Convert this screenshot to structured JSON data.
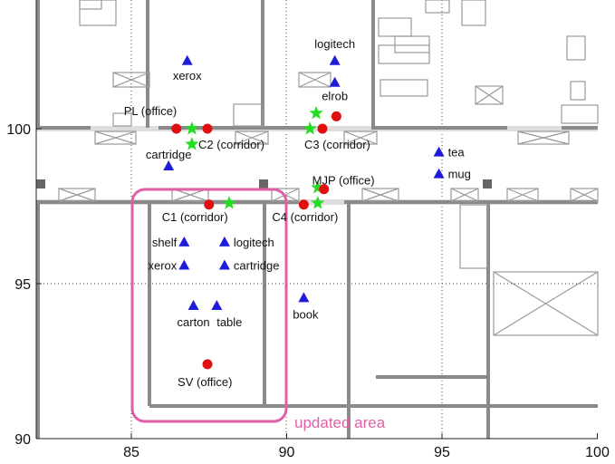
{
  "x_ticks": [
    "85",
    "90",
    "95",
    "100"
  ],
  "y_ticks": [
    "90",
    "95",
    "100"
  ],
  "colors": {
    "wall": "#8a8a8a",
    "furniture": "#9a9a9a",
    "object": "#1e1ed8",
    "place": "#e01010",
    "door": "#22dd22",
    "highlight": "#e060a8",
    "corridor_line": "#d6d6d6"
  },
  "legend_marker_meaning": {
    "object": "blue-triangle-icon",
    "place": "red-circle-icon",
    "door": "green-star-icon"
  },
  "highlight_label": "updated area",
  "places": [
    {
      "label": "PL (office)",
      "x": 86.45,
      "y": 100.0
    },
    {
      "label": "C2 (corridor)",
      "x": 87.45,
      "y": 100.0
    },
    {
      "label": "C3 (corridor)",
      "x": 91.15,
      "y": 100.0
    },
    {
      "label": "",
      "x": 91.6,
      "y": 100.4
    },
    {
      "label": "MJP (office)",
      "x": 91.2,
      "y": 98.05
    },
    {
      "label": "C1 (corridor)",
      "x": 87.5,
      "y": 97.55
    },
    {
      "label": "C4 (corridor)",
      "x": 90.55,
      "y": 97.55
    },
    {
      "label": "SV (office)",
      "x": 87.45,
      "y": 92.4
    }
  ],
  "objects": [
    {
      "label": "xerox",
      "x": 86.8,
      "y": 102.2
    },
    {
      "label": "logitech",
      "x": 91.55,
      "y": 102.2
    },
    {
      "label": "elrob",
      "x": 91.55,
      "y": 101.5
    },
    {
      "label": "tea",
      "x": 94.9,
      "y": 99.25
    },
    {
      "label": "mug",
      "x": 94.9,
      "y": 98.55
    },
    {
      "label": "cartridge",
      "x": 86.2,
      "y": 98.8
    },
    {
      "label": "shelf",
      "x": 86.7,
      "y": 96.35
    },
    {
      "label": "logitech",
      "x": 88.0,
      "y": 96.35
    },
    {
      "label": "xerox",
      "x": 86.7,
      "y": 95.6
    },
    {
      "label": "cartridge",
      "x": 88.0,
      "y": 95.6
    },
    {
      "label": "carton",
      "x": 87.0,
      "y": 94.3
    },
    {
      "label": "table",
      "x": 87.75,
      "y": 94.3
    },
    {
      "label": "book",
      "x": 90.55,
      "y": 94.55
    }
  ],
  "doors": [
    {
      "x": 86.95,
      "y": 100.0
    },
    {
      "x": 86.95,
      "y": 99.5
    },
    {
      "x": 90.95,
      "y": 100.5
    },
    {
      "x": 90.75,
      "y": 100.0
    },
    {
      "x": 88.15,
      "y": 97.6
    },
    {
      "x": 91.0,
      "y": 98.1
    },
    {
      "x": 91.0,
      "y": 97.6
    }
  ]
}
